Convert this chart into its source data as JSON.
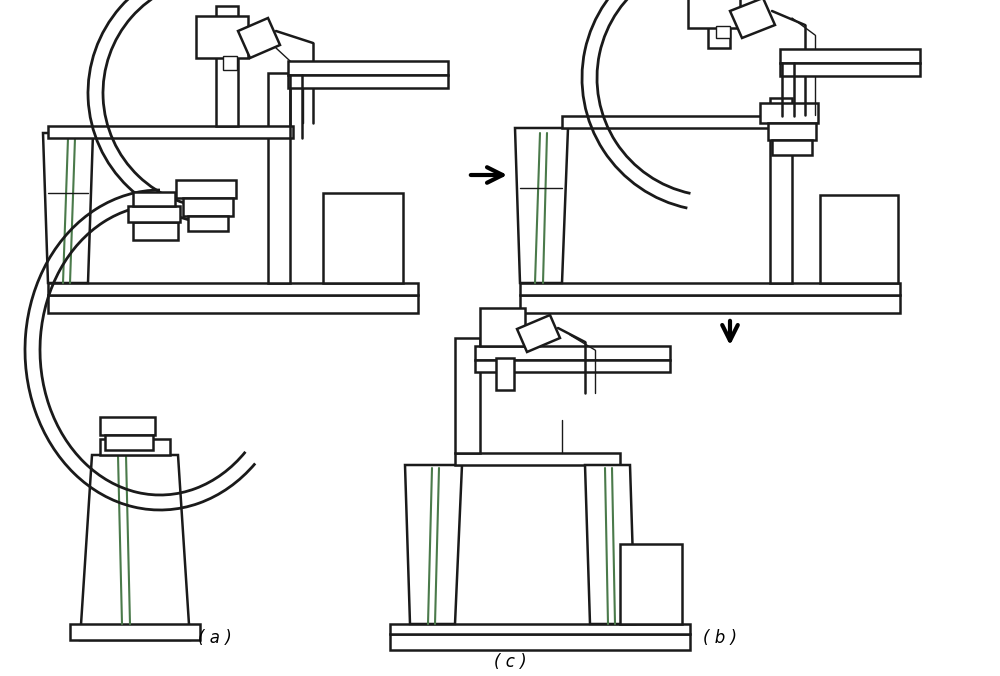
{
  "background_color": "#ffffff",
  "line_color": "#1a1a1a",
  "green_color": "#4a7a4a",
  "arrow_color": "#000000",
  "label_a": "( a )",
  "label_b": "( b )",
  "label_c": "( c )",
  "label_fontsize": 12,
  "fig_width": 10.0,
  "fig_height": 6.76,
  "dpi": 100,
  "lw_thick": 1.8,
  "lw_thin": 1.0,
  "lw_arc": 2.0
}
